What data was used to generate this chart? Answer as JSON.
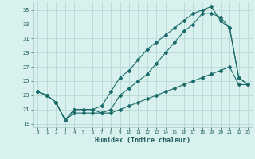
{
  "xlabel": "Humidex (Indice chaleur)",
  "ylabel": "",
  "xlim": [
    -0.5,
    23.5
  ],
  "ylim": [
    18.5,
    36.2
  ],
  "xticks": [
    0,
    1,
    2,
    3,
    4,
    5,
    6,
    7,
    8,
    9,
    10,
    11,
    12,
    13,
    14,
    15,
    16,
    17,
    18,
    19,
    20,
    21,
    22,
    23
  ],
  "yticks": [
    19,
    21,
    23,
    25,
    27,
    29,
    31,
    33,
    35
  ],
  "background_color": "#d8f0ee",
  "grid_color": "#b8d8d4",
  "line_color": "#1a6b6a",
  "line1_x": [
    0,
    1,
    2,
    3,
    4,
    5,
    6,
    7,
    8,
    9,
    10,
    11,
    12,
    13,
    14,
    15,
    16,
    17,
    18,
    19,
    20,
    21,
    22,
    23
  ],
  "line1_y": [
    23.5,
    23.0,
    22.0,
    19.5,
    21.0,
    21.0,
    21.0,
    20.5,
    21.0,
    23.0,
    24.0,
    25.0,
    26.0,
    27.5,
    29.0,
    30.5,
    32.0,
    33.0,
    34.5,
    34.5,
    34.0,
    32.5,
    25.5,
    24.5
  ],
  "line2_x": [
    0,
    1,
    2,
    3,
    4,
    5,
    6,
    7,
    8,
    9,
    10,
    11,
    12,
    13,
    14,
    15,
    16,
    17,
    18,
    19,
    20,
    21,
    22,
    23
  ],
  "line2_y": [
    23.5,
    23.0,
    22.0,
    19.5,
    20.5,
    20.5,
    20.5,
    20.5,
    20.5,
    21.0,
    21.5,
    22.0,
    22.5,
    23.0,
    23.5,
    24.0,
    24.5,
    25.0,
    25.5,
    26.0,
    26.5,
    27.0,
    24.5,
    24.5
  ],
  "line3_x": [
    0,
    1,
    2,
    3,
    4,
    5,
    6,
    7,
    8,
    9,
    10,
    11,
    12,
    13,
    14,
    15,
    16,
    17,
    18,
    19,
    20,
    21,
    22,
    23
  ],
  "line3_y": [
    23.5,
    23.0,
    22.0,
    19.5,
    21.0,
    21.0,
    21.0,
    21.5,
    23.5,
    25.5,
    26.5,
    28.0,
    29.5,
    30.5,
    31.5,
    32.5,
    33.5,
    34.5,
    35.0,
    35.5,
    33.5,
    32.5,
    25.5,
    24.5
  ]
}
